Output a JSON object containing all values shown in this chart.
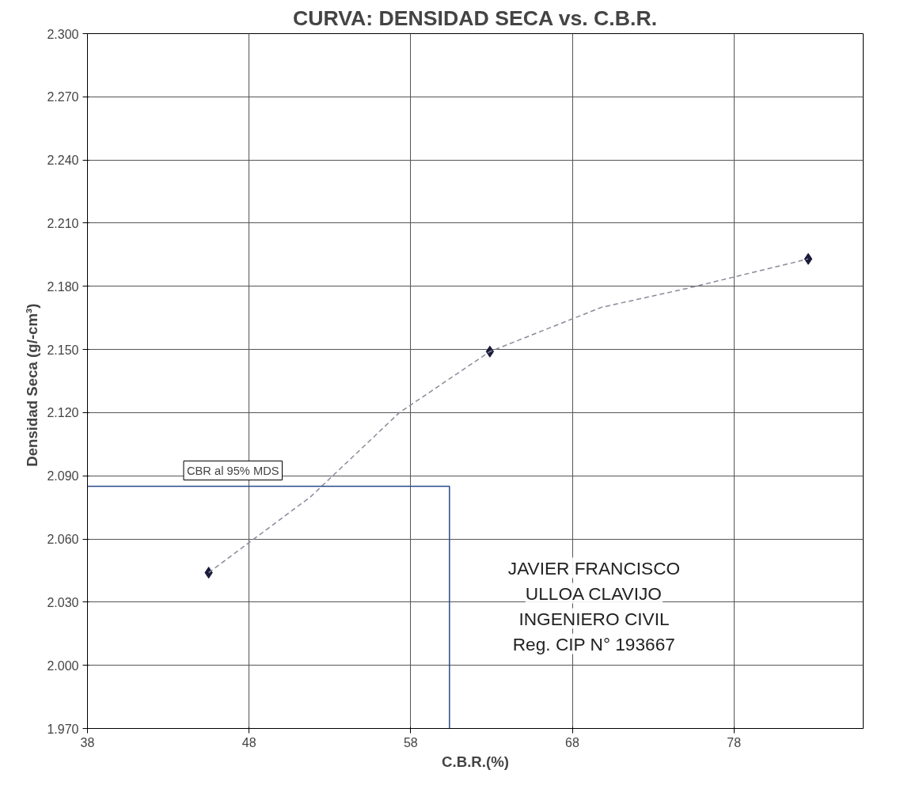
{
  "chart_data": {
    "type": "scatter",
    "title": "CURVA: DENSIDAD SECA vs. C.B.R.",
    "xlabel": "C.B.R.(%)",
    "ylabel": "Densidad   Seca (g/-cm³)",
    "xlim": [
      38,
      86
    ],
    "xticks": [
      38,
      48,
      58,
      68,
      78
    ],
    "ylim": [
      1.97,
      2.3
    ],
    "yticks": [
      {
        "value": 1.97,
        "label": "1.970"
      },
      {
        "value": 2.0,
        "label": "2.000"
      },
      {
        "value": 2.03,
        "label": "2.030"
      },
      {
        "value": 2.06,
        "label": "2.060"
      },
      {
        "value": 2.09,
        "label": "2.090"
      },
      {
        "value": 2.12,
        "label": "2.120"
      },
      {
        "value": 2.15,
        "label": "2.150"
      },
      {
        "value": 2.18,
        "label": "2.180"
      },
      {
        "value": 2.21,
        "label": "2.210"
      },
      {
        "value": 2.24,
        "label": "2.240"
      },
      {
        "value": 2.27,
        "label": "2.270"
      },
      {
        "value": 2.3,
        "label": "2.300"
      }
    ],
    "grid": true,
    "marker": "diamond",
    "series": [
      {
        "color": "#1a1a3a",
        "x": [
          45.5,
          62.9,
          82.6
        ],
        "values": [
          2.044,
          2.149,
          2.193
        ]
      },
      {
        "type": "line",
        "color": "#8a8a9a",
        "line_style": "dashed",
        "marker": "none",
        "x": [
          45.5,
          51.8,
          57.3,
          62.9,
          69.8,
          75.1,
          82.6
        ],
        "values": [
          2.044,
          2.08,
          2.12,
          2.149,
          2.17,
          2.179,
          2.193
        ]
      },
      {
        "type": "line",
        "color": "#2a4a8a",
        "line_style": "solid",
        "marker": "none",
        "x": [
          38,
          60.4,
          60.4
        ],
        "values": [
          2.085,
          2.085,
          1.97
        ]
      }
    ],
    "annotations": [
      {
        "text": "CBR al 95% MDS",
        "x": 47,
        "y": 2.085
      },
      "JAVIER FRANCISCO",
      "ULLOA CLAVIJO",
      "INGENIERO CIVIL",
      "Reg. CIP N° 193667"
    ]
  }
}
